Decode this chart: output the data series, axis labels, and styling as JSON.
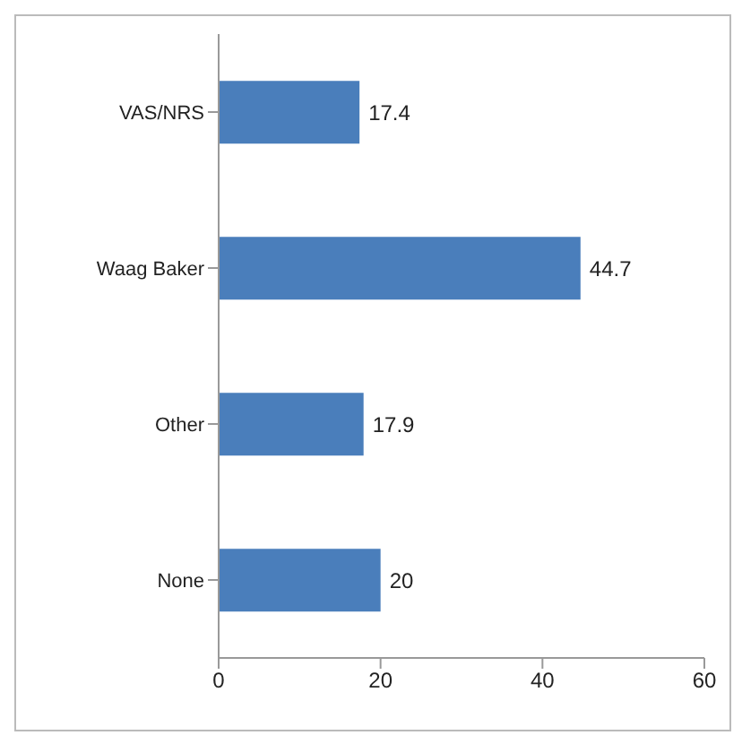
{
  "chart_data": {
    "type": "bar",
    "orientation": "horizontal",
    "categories": [
      "VAS/NRS",
      "Waag Baker",
      "Other",
      "None"
    ],
    "values": [
      17.4,
      44.7,
      17.9,
      20
    ],
    "color": "#4a7ebb",
    "xlim": [
      0,
      60
    ],
    "xticks": [
      0,
      20,
      40,
      60
    ],
    "data_labels": true,
    "grid": false
  }
}
